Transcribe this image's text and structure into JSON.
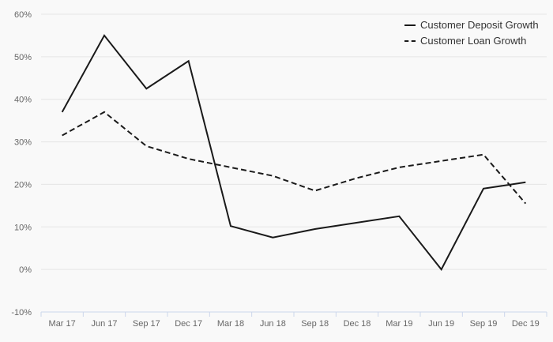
{
  "chart_data": {
    "type": "line",
    "title": "",
    "xlabel": "",
    "ylabel": "",
    "categories": [
      "Mar 17",
      "Jun 17",
      "Sep 17",
      "Dec 17",
      "Mar 18",
      "Jun 18",
      "Sep 18",
      "Dec 18",
      "Mar 19",
      "Jun 19",
      "Sep 19",
      "Dec 19"
    ],
    "series": [
      {
        "name": "Customer Deposit Growth",
        "style": "solid",
        "values": [
          37,
          55,
          42.5,
          49,
          10.2,
          7.5,
          9.5,
          11,
          12.5,
          0,
          19,
          20.5
        ]
      },
      {
        "name": "Customer Loan Growth",
        "style": "dashed",
        "values": [
          31.5,
          37,
          29,
          26,
          24,
          22,
          18.5,
          21.5,
          24,
          25.5,
          27,
          15.5
        ]
      }
    ],
    "ylim": [
      -10,
      60
    ],
    "yticks": [
      {
        "value": 60,
        "label": "60%"
      },
      {
        "value": 50,
        "label": "50%"
      },
      {
        "value": 40,
        "label": "40%"
      },
      {
        "value": 30,
        "label": "30%"
      },
      {
        "value": 20,
        "label": "20%"
      },
      {
        "value": 10,
        "label": "10%"
      },
      {
        "value": 0,
        "label": "0%"
      },
      {
        "value": -10,
        "label": "-10%"
      }
    ],
    "grid": true,
    "legend_position": "top-right"
  },
  "colors": {
    "background": "#f9f9f9",
    "grid": "#e6e6e6",
    "axis": "#ccd6eb",
    "line": "#1a1a1a",
    "axis_label": "#666666",
    "legend_text": "#333333"
  }
}
